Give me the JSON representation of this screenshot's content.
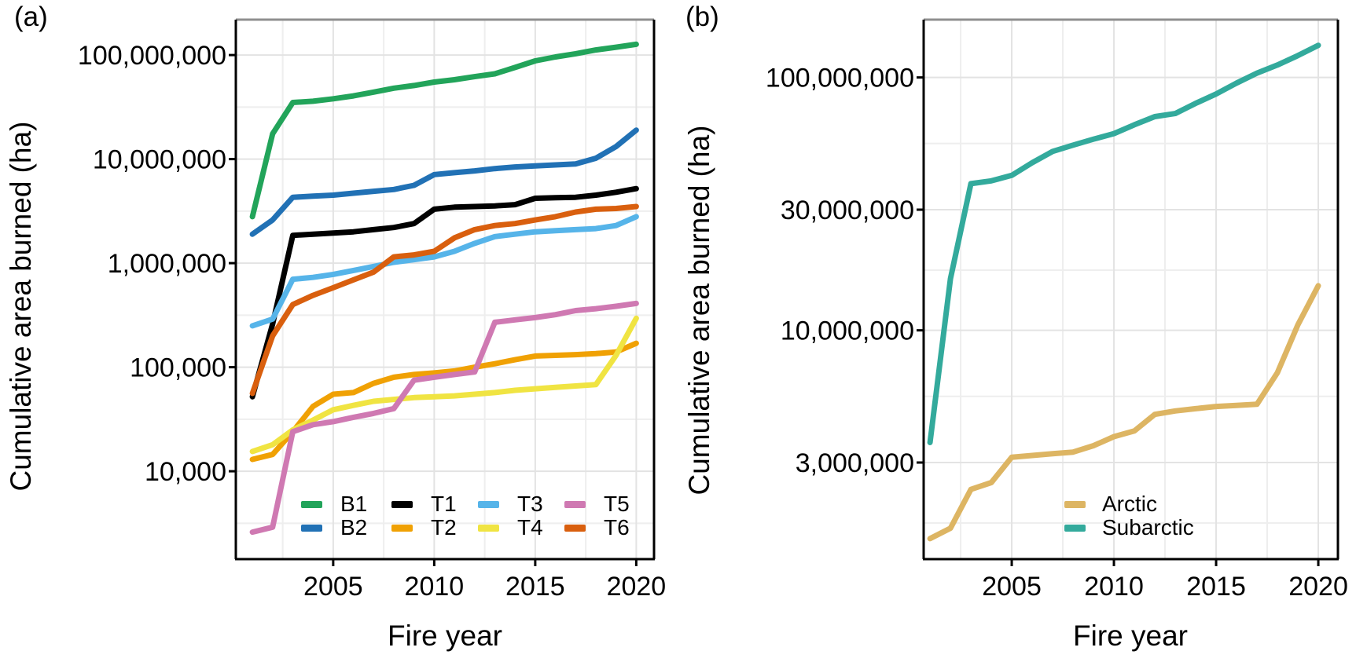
{
  "chart_data": [
    {
      "id": "panel_a",
      "type": "line",
      "panel_label": "(a)",
      "xlabel": "Fire year",
      "ylabel": "Cumulative area burned (ha)",
      "x_scale": "linear",
      "y_scale": "log10",
      "grid": true,
      "legend_position": "inside-bottom",
      "x": [
        2001,
        2002,
        2003,
        2004,
        2005,
        2006,
        2007,
        2008,
        2009,
        2010,
        2011,
        2012,
        2013,
        2014,
        2015,
        2016,
        2017,
        2018,
        2019,
        2020
      ],
      "series": [
        {
          "name": "B1",
          "color": "#22a45a",
          "values": [
            2800000,
            17500000,
            35000000,
            36000000,
            38000000,
            40500000,
            44000000,
            48000000,
            51000000,
            55000000,
            58000000,
            62000000,
            66000000,
            76000000,
            88000000,
            96000000,
            103000000,
            112000000,
            119000000,
            127000000
          ]
        },
        {
          "name": "B2",
          "color": "#2171b5",
          "values": [
            1900000,
            2600000,
            4300000,
            4400000,
            4500000,
            4700000,
            4900000,
            5100000,
            5600000,
            7100000,
            7400000,
            7700000,
            8100000,
            8400000,
            8600000,
            8800000,
            9000000,
            10200000,
            13200000,
            19000000
          ]
        },
        {
          "name": "T1",
          "color": "#000000",
          "values": [
            52000,
            260000,
            1850000,
            1900000,
            1950000,
            2000000,
            2100000,
            2200000,
            2400000,
            3300000,
            3450000,
            3500000,
            3550000,
            3650000,
            4200000,
            4250000,
            4300000,
            4500000,
            4800000,
            5200000
          ]
        },
        {
          "name": "T2",
          "color": "#f0a104",
          "values": [
            13000,
            14500,
            24000,
            42000,
            55000,
            57000,
            70000,
            80000,
            85000,
            88000,
            92000,
            100000,
            108000,
            118000,
            128000,
            130000,
            132000,
            135000,
            140000,
            170000
          ]
        },
        {
          "name": "T3",
          "color": "#56b4e9",
          "values": [
            250000,
            290000,
            700000,
            730000,
            780000,
            850000,
            930000,
            1020000,
            1080000,
            1150000,
            1300000,
            1550000,
            1800000,
            1900000,
            2000000,
            2050000,
            2100000,
            2150000,
            2300000,
            2800000
          ]
        },
        {
          "name": "T4",
          "color": "#f0e442",
          "values": [
            15500,
            18000,
            25000,
            31000,
            39000,
            43000,
            47000,
            49000,
            51000,
            52000,
            53000,
            55000,
            57000,
            60000,
            62000,
            64000,
            66000,
            68000,
            130000,
            295000
          ]
        },
        {
          "name": "T5",
          "color": "#cf79b2",
          "values": [
            2600,
            2900,
            24000,
            28000,
            30000,
            33000,
            36000,
            40000,
            75000,
            80000,
            85000,
            90000,
            270000,
            285000,
            300000,
            320000,
            350000,
            365000,
            385000,
            410000
          ]
        },
        {
          "name": "T6",
          "color": "#d95f0e",
          "values": [
            56000,
            200000,
            400000,
            490000,
            580000,
            690000,
            820000,
            1150000,
            1200000,
            1300000,
            1750000,
            2100000,
            2300000,
            2400000,
            2600000,
            2800000,
            3100000,
            3300000,
            3350000,
            3500000
          ]
        }
      ],
      "x_axis": {
        "ticks": [
          2005,
          2010,
          2015,
          2020
        ],
        "tick_labels": [
          "2005",
          "2010",
          "2015",
          "2020"
        ],
        "minor_ticks": [
          2002.5,
          2007.5,
          2012.5,
          2017.5
        ],
        "domain": [
          2000.18,
          2020.88
        ]
      },
      "y_axis": {
        "ticks": [
          {
            "value": 100000000,
            "label": "100,000,000"
          },
          {
            "value": 10000000,
            "label": "10,000,000"
          },
          {
            "value": 1000000,
            "label": "1,000,000"
          },
          {
            "value": 100000,
            "label": "100,000"
          },
          {
            "value": 10000,
            "label": "10,000"
          }
        ],
        "minor_ticks": [
          31600000,
          3160000,
          316000,
          31600,
          3160
        ],
        "domain": [
          1430,
          219000000
        ]
      },
      "legend": {
        "layout": "2-rows-4-cols-column-major",
        "order": [
          "B1",
          "B2",
          "T1",
          "T2",
          "T3",
          "T4",
          "T5",
          "T6"
        ]
      }
    },
    {
      "id": "panel_b",
      "type": "line",
      "panel_label": "(b)",
      "xlabel": "Fire year",
      "ylabel": "Cumulative area burned (ha)",
      "x_scale": "linear",
      "y_scale": "log10",
      "grid": true,
      "legend_position": "inside-bottom",
      "x": [
        2001,
        2002,
        2003,
        2004,
        2005,
        2006,
        2007,
        2008,
        2009,
        2010,
        2011,
        2012,
        2013,
        2014,
        2015,
        2016,
        2017,
        2018,
        2019,
        2020
      ],
      "series": [
        {
          "name": "Arctic",
          "color": "#ddb563",
          "values": [
            1500000,
            1650000,
            2350000,
            2500000,
            3150000,
            3200000,
            3250000,
            3300000,
            3500000,
            3800000,
            4000000,
            4650000,
            4800000,
            4900000,
            5000000,
            5050000,
            5100000,
            6800000,
            10500000,
            15000000
          ]
        },
        {
          "name": "Subarctic",
          "color": "#33aa9c",
          "values": [
            3600000,
            16000000,
            38000000,
            39000000,
            41000000,
            46000000,
            51000000,
            54000000,
            57000000,
            60000000,
            65000000,
            70000000,
            72000000,
            79000000,
            86000000,
            95000000,
            104000000,
            112000000,
            122000000,
            134000000
          ]
        }
      ],
      "x_axis": {
        "ticks": [
          2005,
          2010,
          2015,
          2020
        ],
        "tick_labels": [
          "2005",
          "2010",
          "2015",
          "2020"
        ],
        "minor_ticks": [
          2002.5,
          2007.5,
          2012.5,
          2017.5
        ],
        "domain": [
          2000.69,
          2020.96
        ]
      },
      "y_axis": {
        "ticks": [
          {
            "value": 100000000,
            "label": "100,000,000"
          },
          {
            "value": 30000000,
            "label": "30,000,000"
          },
          {
            "value": 10000000,
            "label": "10,000,000"
          },
          {
            "value": 3000000,
            "label": "3,000,000"
          }
        ],
        "minor_ticks": [
          54800000,
          17300000,
          5480000,
          1730000
        ],
        "domain": [
          1245000,
          169300000
        ]
      },
      "legend": {
        "layout": "1-col",
        "order": [
          "Arctic",
          "Subarctic"
        ]
      }
    }
  ],
  "style": {
    "grid_major_color": "#e3e3e3",
    "grid_minor_color": "#eeeeee",
    "axis_color": "#000000",
    "top_border_color": "#8f8f8f",
    "line_width": 7
  }
}
